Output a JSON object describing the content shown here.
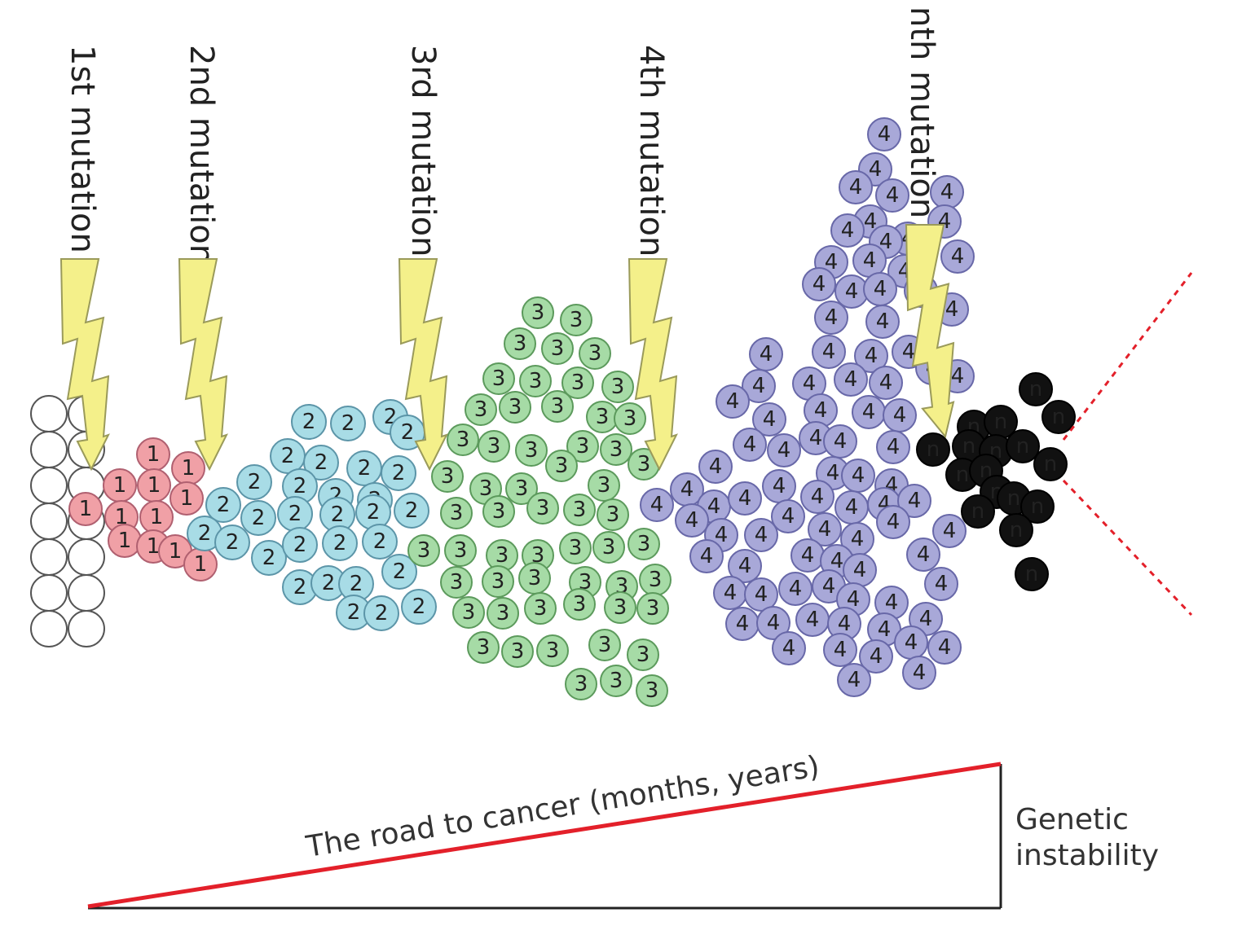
{
  "mutations": [
    {
      "label": "1st mutation"
    },
    {
      "label": "2nd mutation"
    },
    {
      "label": "3rd mutation"
    },
    {
      "label": "4th mutation"
    },
    {
      "label": "nth mutation"
    }
  ],
  "cell_groups": [
    {
      "name": "normal",
      "label": "",
      "fill": "#ffffff",
      "stroke": "#555555"
    },
    {
      "name": "stage-1",
      "label": "1",
      "fill": "#f0a0a6",
      "stroke": "#b06070"
    },
    {
      "name": "stage-2",
      "label": "2",
      "fill": "#a8dce6",
      "stroke": "#5c95a8"
    },
    {
      "name": "stage-3",
      "label": "3",
      "fill": "#a6dba6",
      "stroke": "#5c9a5c"
    },
    {
      "name": "stage-4",
      "label": "4",
      "fill": "#a8a8d8",
      "stroke": "#6868a8"
    },
    {
      "name": "stage-n",
      "label": "n",
      "fill": "#111111",
      "stroke": "#000000"
    }
  ],
  "bolt_color": "#f4f08a",
  "road_label": "The road to cancer (months, years)",
  "road_color": "#e3202a",
  "instability_label_line1": "Genetic",
  "instability_label_line2": "instability",
  "divergence_color": "#e3202a"
}
